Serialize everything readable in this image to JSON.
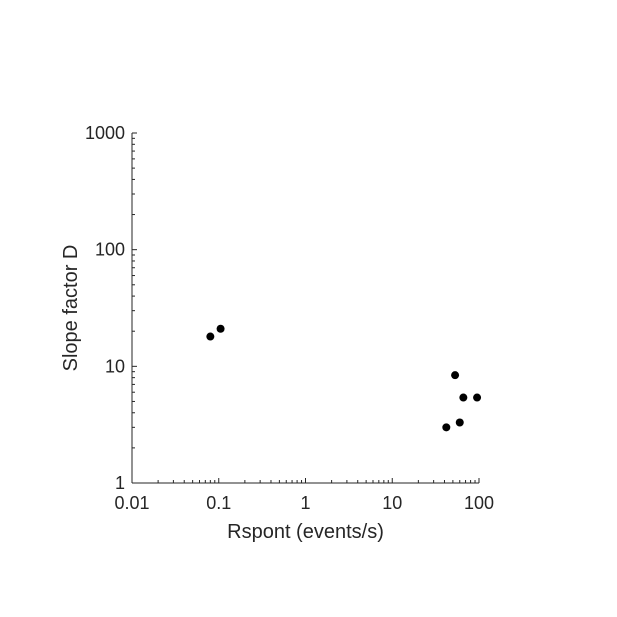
{
  "chart_data": {
    "type": "scatter",
    "xlabel": "Rspont (events/s)",
    "ylabel": "Slope factor D",
    "xscale": "log",
    "yscale": "log",
    "xlim": [
      0.01,
      100
    ],
    "ylim": [
      1,
      1000
    ],
    "xticks": [
      0.01,
      0.1,
      1,
      10,
      100
    ],
    "xtick_labels": [
      "0.01",
      "0.1",
      "1",
      "10",
      "100"
    ],
    "yticks": [
      1,
      10,
      100,
      1000
    ],
    "ytick_labels": [
      "1",
      "10",
      "100",
      "1000"
    ],
    "grid": false,
    "marker_color": "#000000",
    "points": [
      {
        "x": 0.08,
        "y": 18
      },
      {
        "x": 0.105,
        "y": 21
      },
      {
        "x": 42,
        "y": 3.0
      },
      {
        "x": 53,
        "y": 8.4
      },
      {
        "x": 60,
        "y": 3.3
      },
      {
        "x": 66,
        "y": 5.4
      },
      {
        "x": 95,
        "y": 5.4
      }
    ]
  }
}
